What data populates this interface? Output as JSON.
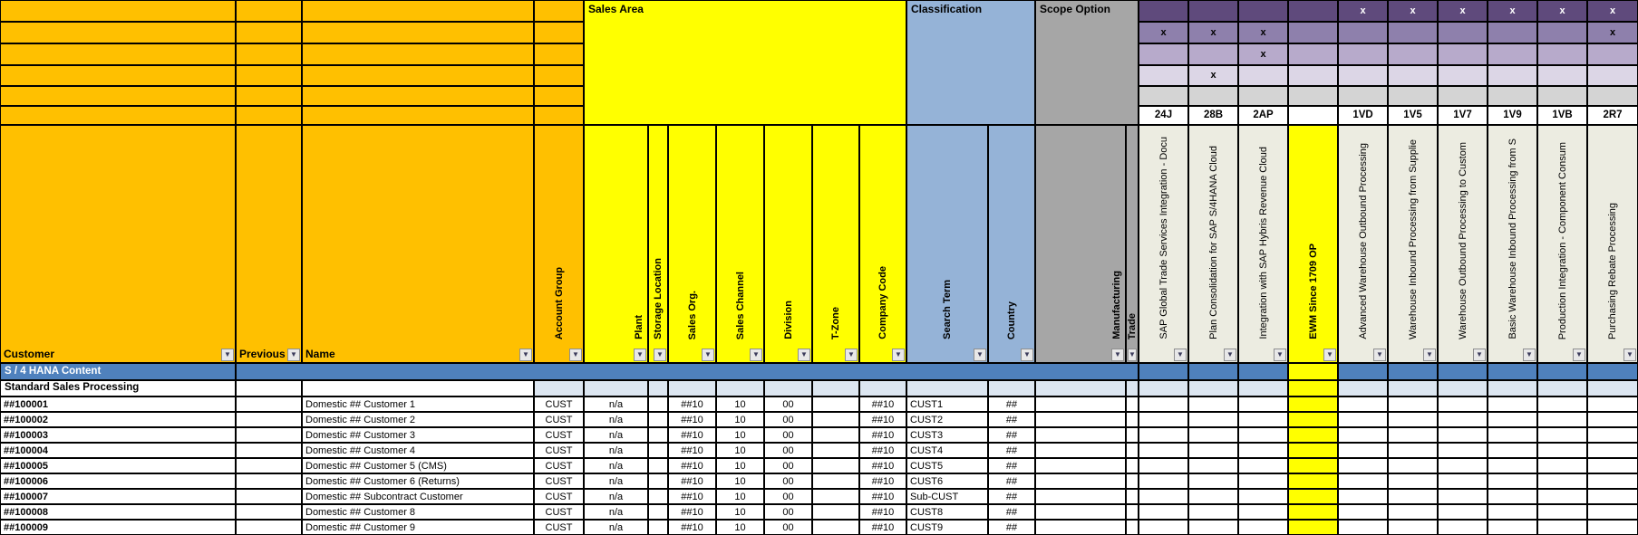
{
  "blocks": {
    "sales_area": "Sales Area",
    "classification": "Classification",
    "scope_option": "Scope Option"
  },
  "columns": {
    "customer": "Customer",
    "previous": "Previous",
    "name": "Name",
    "account_group": "Account Group",
    "plant": "Plant",
    "storage_location": "Storage Location",
    "sales_org": "Sales Org.",
    "sales_channel": "Sales Channel",
    "division": "Division",
    "t_zone": "T-Zone",
    "company_code": "Company Code",
    "search_term": "Search Term",
    "country": "Country",
    "manufacturing": "Manufacturing",
    "trade": "Trade"
  },
  "scope_items": [
    {
      "code": "24J",
      "label": "SAP Global Trade Services Integration - Docu",
      "marks": [
        0,
        1,
        0,
        0,
        0
      ],
      "highlight": false
    },
    {
      "code": "28B",
      "label": "Plan Consolidation for SAP S/4HANA Cloud",
      "marks": [
        0,
        1,
        0,
        1,
        0
      ],
      "highlight": false
    },
    {
      "code": "2AP",
      "label": "Integration with SAP Hybris Revenue Cloud",
      "marks": [
        0,
        1,
        1,
        0,
        0
      ],
      "highlight": false
    },
    {
      "code": "",
      "label": "EWM Since 1709 OP",
      "marks": [
        0,
        0,
        0,
        0,
        0
      ],
      "highlight": true
    },
    {
      "code": "1VD",
      "label": "Advanced Warehouse Outbound Processing",
      "marks": [
        1,
        0,
        0,
        0,
        0
      ],
      "highlight": false
    },
    {
      "code": "1V5",
      "label": "Warehouse Inbound Processing from Supplie",
      "marks": [
        1,
        0,
        0,
        0,
        0
      ],
      "highlight": false
    },
    {
      "code": "1V7",
      "label": "Warehouse Outbound Processing to Custom",
      "marks": [
        1,
        0,
        0,
        0,
        0
      ],
      "highlight": false
    },
    {
      "code": "1V9",
      "label": "Basic Warehouse Inbound Processing from S",
      "marks": [
        1,
        0,
        0,
        0,
        0
      ],
      "highlight": false
    },
    {
      "code": "1VB",
      "label": "Production Integration - Component Consum",
      "marks": [
        1,
        0,
        0,
        0,
        0
      ],
      "highlight": false
    },
    {
      "code": "2R7",
      "label": "Purchasing Rebate Processing",
      "marks": [
        1,
        1,
        0,
        0,
        0
      ],
      "highlight": false
    }
  ],
  "mark_char": "x",
  "sections": {
    "band": "S / 4 HANA Content",
    "subsection": "Standard Sales Processing"
  },
  "rows": [
    {
      "customer": "##100001",
      "previous": "",
      "name": "Domestic ## Customer 1",
      "account_group": "CUST",
      "plant": "n/a",
      "storage_location": "",
      "sales_org": "##10",
      "sales_channel": "10",
      "division": "00",
      "t_zone": "",
      "company_code": "##10",
      "search_term": "CUST1",
      "country": "##"
    },
    {
      "customer": "##100002",
      "previous": "",
      "name": "Domestic ## Customer 2",
      "account_group": "CUST",
      "plant": "n/a",
      "storage_location": "",
      "sales_org": "##10",
      "sales_channel": "10",
      "division": "00",
      "t_zone": "",
      "company_code": "##10",
      "search_term": "CUST2",
      "country": "##"
    },
    {
      "customer": "##100003",
      "previous": "",
      "name": "Domestic ## Customer 3",
      "account_group": "CUST",
      "plant": "n/a",
      "storage_location": "",
      "sales_org": "##10",
      "sales_channel": "10",
      "division": "00",
      "t_zone": "",
      "company_code": "##10",
      "search_term": "CUST3",
      "country": "##"
    },
    {
      "customer": "##100004",
      "previous": "",
      "name": "Domestic ## Customer 4",
      "account_group": "CUST",
      "plant": "n/a",
      "storage_location": "",
      "sales_org": "##10",
      "sales_channel": "10",
      "division": "00",
      "t_zone": "",
      "company_code": "##10",
      "search_term": "CUST4",
      "country": "##"
    },
    {
      "customer": "##100005",
      "previous": "",
      "name": "Domestic ## Customer 5 (CMS)",
      "account_group": "CUST",
      "plant": "n/a",
      "storage_location": "",
      "sales_org": "##10",
      "sales_channel": "10",
      "division": "00",
      "t_zone": "",
      "company_code": "##10",
      "search_term": "CUST5",
      "country": "##"
    },
    {
      "customer": "##100006",
      "previous": "",
      "name": "Domestic ## Customer 6 (Returns)",
      "account_group": "CUST",
      "plant": "n/a",
      "storage_location": "",
      "sales_org": "##10",
      "sales_channel": "10",
      "division": "00",
      "t_zone": "",
      "company_code": "##10",
      "search_term": "CUST6",
      "country": "##"
    },
    {
      "customer": "##100007",
      "previous": "",
      "name": "Domestic ## Subcontract Customer",
      "account_group": "CUST",
      "plant": "n/a",
      "storage_location": "",
      "sales_org": "##10",
      "sales_channel": "10",
      "division": "00",
      "t_zone": "",
      "company_code": "##10",
      "search_term": "Sub-CUST",
      "country": "##"
    },
    {
      "customer": "##100008",
      "previous": "",
      "name": "Domestic ## Customer 8",
      "account_group": "CUST",
      "plant": "n/a",
      "storage_location": "",
      "sales_org": "##10",
      "sales_channel": "10",
      "division": "00",
      "t_zone": "",
      "company_code": "##10",
      "search_term": "CUST8",
      "country": "##"
    },
    {
      "customer": "##100009",
      "previous": "",
      "name": "Domestic ## Customer 9",
      "account_group": "CUST",
      "plant": "n/a",
      "storage_location": "",
      "sales_org": "##10",
      "sales_channel": "10",
      "division": "00",
      "t_zone": "",
      "company_code": "##10",
      "search_term": "CUST9",
      "country": "##"
    }
  ],
  "colors": {
    "orange": "#FFC000",
    "yellow": "#FFFF00",
    "classification_blue": "#95B3D7",
    "scope_gray": "#A6A6A6",
    "scope_item_beige": "#ECECE1",
    "band_blue": "#4F81BD",
    "subsection_blue": "#DCE6F1",
    "matrix_rows": [
      "#5F4A7C",
      "#8E80AC",
      "#B7AACB",
      "#DCD6E6",
      "#D4D4D4"
    ],
    "grid_border": "#000000"
  }
}
